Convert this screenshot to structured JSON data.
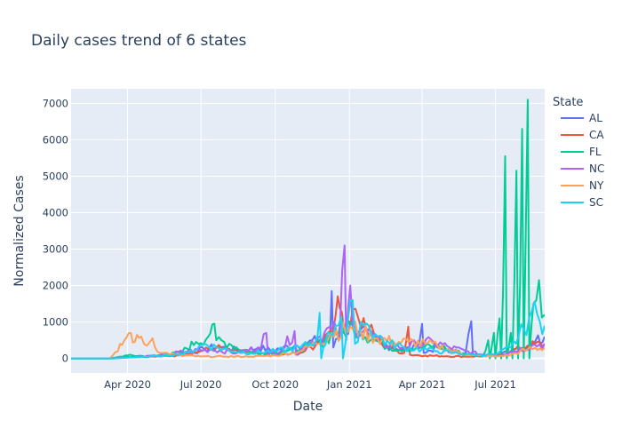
{
  "chart_data": {
    "type": "line",
    "title": "Daily cases trend of 6 states",
    "xlabel": "Date",
    "ylabel": "Normalized Cases",
    "x_range": [
      "2020-01-22",
      "2021-08-31"
    ],
    "ylim": [
      -400,
      7400
    ],
    "x_ticks": [
      {
        "date": "2020-04-01",
        "label": "Apr 2020"
      },
      {
        "date": "2020-07-01",
        "label": "Jul 2020"
      },
      {
        "date": "2020-10-01",
        "label": "Oct 2020"
      },
      {
        "date": "2021-01-01",
        "label": "Jan 2021"
      },
      {
        "date": "2021-04-01",
        "label": "Apr 2021"
      },
      {
        "date": "2021-07-01",
        "label": "Jul 2021"
      }
    ],
    "y_ticks": [
      {
        "value": 0,
        "label": "0"
      },
      {
        "value": 1000,
        "label": "1000"
      },
      {
        "value": 2000,
        "label": "2000"
      },
      {
        "value": 3000,
        "label": "3000"
      },
      {
        "value": 4000,
        "label": "4000"
      },
      {
        "value": 5000,
        "label": "5000"
      },
      {
        "value": 6000,
        "label": "6000"
      },
      {
        "value": 7000,
        "label": "7000"
      }
    ],
    "grid": true,
    "legend": {
      "title": "State",
      "placement": "right"
    },
    "series": [
      {
        "name": "AL",
        "color": "#636efa",
        "points": [
          [
            "2020-01-22",
            0
          ],
          [
            "2020-03-10",
            0
          ],
          [
            "2020-03-25",
            20
          ],
          [
            "2020-04-15",
            40
          ],
          [
            "2020-05-15",
            70
          ],
          [
            "2020-06-15",
            150
          ],
          [
            "2020-07-05",
            250
          ],
          [
            "2020-07-20",
            320
          ],
          [
            "2020-08-05",
            260
          ],
          [
            "2020-08-25",
            200
          ],
          [
            "2020-09-10",
            300
          ],
          [
            "2020-09-25",
            220
          ],
          [
            "2020-10-10",
            280
          ],
          [
            "2020-10-25",
            350
          ],
          [
            "2020-11-10",
            420
          ],
          [
            "2020-11-25",
            500
          ],
          [
            "2020-12-08",
            650
          ],
          [
            "2020-12-10",
            1850
          ],
          [
            "2020-12-12",
            300
          ],
          [
            "2020-12-22",
            700
          ],
          [
            "2021-01-05",
            900
          ],
          [
            "2021-01-15",
            800
          ],
          [
            "2021-01-25",
            600
          ],
          [
            "2021-02-10",
            400
          ],
          [
            "2021-02-25",
            300
          ],
          [
            "2021-03-10",
            250
          ],
          [
            "2021-03-25",
            300
          ],
          [
            "2021-04-01",
            950
          ],
          [
            "2021-04-03",
            150
          ],
          [
            "2021-04-20",
            300
          ],
          [
            "2021-05-10",
            200
          ],
          [
            "2021-05-25",
            150
          ],
          [
            "2021-06-01",
            1020
          ],
          [
            "2021-06-03",
            100
          ],
          [
            "2021-06-20",
            80
          ],
          [
            "2021-07-05",
            100
          ],
          [
            "2021-07-20",
            200
          ],
          [
            "2021-08-05",
            300
          ],
          [
            "2021-08-20",
            500
          ],
          [
            "2021-08-31",
            600
          ]
        ]
      },
      {
        "name": "CA",
        "color": "#ef553b",
        "points": [
          [
            "2020-01-22",
            0
          ],
          [
            "2020-03-15",
            0
          ],
          [
            "2020-04-01",
            40
          ],
          [
            "2020-05-01",
            50
          ],
          [
            "2020-06-01",
            80
          ],
          [
            "2020-07-01",
            200
          ],
          [
            "2020-07-20",
            300
          ],
          [
            "2020-08-10",
            200
          ],
          [
            "2020-09-10",
            120
          ],
          [
            "2020-10-10",
            100
          ],
          [
            "2020-11-01",
            150
          ],
          [
            "2020-11-20",
            350
          ],
          [
            "2020-12-05",
            700
          ],
          [
            "2020-12-15",
            1200
          ],
          [
            "2020-12-20",
            1380
          ],
          [
            "2020-12-28",
            1000
          ],
          [
            "2021-01-05",
            1350
          ],
          [
            "2021-01-12",
            1100
          ],
          [
            "2021-01-25",
            800
          ],
          [
            "2021-02-10",
            400
          ],
          [
            "2021-02-25",
            250
          ],
          [
            "2021-03-10",
            150
          ],
          [
            "2021-03-15",
            870
          ],
          [
            "2021-03-17",
            100
          ],
          [
            "2021-04-05",
            80
          ],
          [
            "2021-05-01",
            60
          ],
          [
            "2021-06-01",
            50
          ],
          [
            "2021-07-01",
            80
          ],
          [
            "2021-07-20",
            200
          ],
          [
            "2021-08-10",
            350
          ],
          [
            "2021-08-31",
            400
          ]
        ]
      },
      {
        "name": "FL",
        "color": "#00cc96",
        "points": [
          [
            "2020-01-22",
            0
          ],
          [
            "2020-03-10",
            0
          ],
          [
            "2020-04-01",
            80
          ],
          [
            "2020-05-01",
            60
          ],
          [
            "2020-06-05",
            150
          ],
          [
            "2020-06-25",
            450
          ],
          [
            "2020-07-10",
            600
          ],
          [
            "2020-07-15",
            930
          ],
          [
            "2020-07-20",
            500
          ],
          [
            "2020-08-05",
            400
          ],
          [
            "2020-08-25",
            200
          ],
          [
            "2020-09-15",
            150
          ],
          [
            "2020-10-10",
            200
          ],
          [
            "2020-11-01",
            250
          ],
          [
            "2020-11-25",
            450
          ],
          [
            "2020-12-15",
            700
          ],
          [
            "2021-01-05",
            900
          ],
          [
            "2021-01-15",
            750
          ],
          [
            "2021-02-01",
            500
          ],
          [
            "2021-02-20",
            300
          ],
          [
            "2021-03-10",
            250
          ],
          [
            "2021-04-01",
            300
          ],
          [
            "2021-04-20",
            350
          ],
          [
            "2021-05-10",
            200
          ],
          [
            "2021-06-01",
            100
          ],
          [
            "2021-06-15",
            50
          ],
          [
            "2021-06-22",
            500
          ],
          [
            "2021-06-24",
            0
          ],
          [
            "2021-06-29",
            700
          ],
          [
            "2021-07-01",
            0
          ],
          [
            "2021-07-06",
            1100
          ],
          [
            "2021-07-08",
            0
          ],
          [
            "2021-07-13",
            5550
          ],
          [
            "2021-07-15",
            0
          ],
          [
            "2021-07-20",
            700
          ],
          [
            "2021-07-22",
            0
          ],
          [
            "2021-07-27",
            5150
          ],
          [
            "2021-07-29",
            0
          ],
          [
            "2021-08-03",
            6300
          ],
          [
            "2021-08-05",
            0
          ],
          [
            "2021-08-10",
            7100
          ],
          [
            "2021-08-12",
            0
          ],
          [
            "2021-08-17",
            1500
          ],
          [
            "2021-08-24",
            2150
          ],
          [
            "2021-08-31",
            1200
          ]
        ]
      },
      {
        "name": "NC",
        "color": "#ab63fa",
        "points": [
          [
            "2020-01-22",
            0
          ],
          [
            "2020-03-15",
            0
          ],
          [
            "2020-04-10",
            40
          ],
          [
            "2020-05-10",
            80
          ],
          [
            "2020-06-15",
            200
          ],
          [
            "2020-07-15",
            250
          ],
          [
            "2020-08-15",
            150
          ],
          [
            "2020-09-10",
            300
          ],
          [
            "2020-09-20",
            700
          ],
          [
            "2020-09-22",
            100
          ],
          [
            "2020-10-10",
            250
          ],
          [
            "2020-10-25",
            750
          ],
          [
            "2020-10-27",
            100
          ],
          [
            "2020-11-10",
            400
          ],
          [
            "2020-11-25",
            600
          ],
          [
            "2020-12-10",
            800
          ],
          [
            "2020-12-20",
            700
          ],
          [
            "2020-12-26",
            3100
          ],
          [
            "2020-12-28",
            500
          ],
          [
            "2021-01-02",
            2000
          ],
          [
            "2021-01-05",
            900
          ],
          [
            "2021-01-20",
            800
          ],
          [
            "2021-02-05",
            500
          ],
          [
            "2021-02-20",
            350
          ],
          [
            "2021-03-10",
            300
          ],
          [
            "2021-03-25",
            400
          ],
          [
            "2021-04-15",
            450
          ],
          [
            "2021-05-05",
            300
          ],
          [
            "2021-05-25",
            200
          ],
          [
            "2021-06-15",
            100
          ],
          [
            "2021-07-05",
            100
          ],
          [
            "2021-07-25",
            200
          ],
          [
            "2021-08-15",
            350
          ],
          [
            "2021-08-31",
            400
          ]
        ]
      },
      {
        "name": "NY",
        "color": "#ffa15a",
        "points": [
          [
            "2020-01-22",
            0
          ],
          [
            "2020-03-10",
            0
          ],
          [
            "2020-03-20",
            200
          ],
          [
            "2020-03-28",
            500
          ],
          [
            "2020-04-05",
            700
          ],
          [
            "2020-04-10",
            450
          ],
          [
            "2020-04-18",
            600
          ],
          [
            "2020-04-25",
            350
          ],
          [
            "2020-05-02",
            550
          ],
          [
            "2020-05-05",
            300
          ],
          [
            "2020-05-15",
            150
          ],
          [
            "2020-06-01",
            100
          ],
          [
            "2020-07-01",
            50
          ],
          [
            "2020-08-01",
            50
          ],
          [
            "2020-09-01",
            50
          ],
          [
            "2020-10-01",
            80
          ],
          [
            "2020-11-01",
            200
          ],
          [
            "2020-11-20",
            400
          ],
          [
            "2020-12-10",
            700
          ],
          [
            "2021-01-05",
            800
          ],
          [
            "2021-01-15",
            750
          ],
          [
            "2021-02-05",
            550
          ],
          [
            "2021-02-25",
            450
          ],
          [
            "2021-03-15",
            450
          ],
          [
            "2021-04-05",
            400
          ],
          [
            "2021-04-20",
            350
          ],
          [
            "2021-05-10",
            200
          ],
          [
            "2021-06-01",
            80
          ],
          [
            "2021-07-01",
            50
          ],
          [
            "2021-07-20",
            100
          ],
          [
            "2021-08-10",
            250
          ],
          [
            "2021-08-31",
            300
          ]
        ]
      },
      {
        "name": "SC",
        "color": "#19d3f3",
        "points": [
          [
            "2020-01-22",
            0
          ],
          [
            "2020-03-15",
            0
          ],
          [
            "2020-04-10",
            30
          ],
          [
            "2020-05-10",
            60
          ],
          [
            "2020-06-15",
            150
          ],
          [
            "2020-07-05",
            400
          ],
          [
            "2020-07-20",
            300
          ],
          [
            "2020-08-10",
            200
          ],
          [
            "2020-09-01",
            150
          ],
          [
            "2020-10-01",
            200
          ],
          [
            "2020-11-01",
            300
          ],
          [
            "2020-11-20",
            450
          ],
          [
            "2020-11-25",
            1250
          ],
          [
            "2020-11-27",
            0
          ],
          [
            "2020-12-05",
            700
          ],
          [
            "2020-12-15",
            900
          ],
          [
            "2020-12-22",
            1150
          ],
          [
            "2020-12-24",
            0
          ],
          [
            "2021-01-05",
            1600
          ],
          [
            "2021-01-08",
            400
          ],
          [
            "2021-01-15",
            1000
          ],
          [
            "2021-01-25",
            900
          ],
          [
            "2021-02-05",
            600
          ],
          [
            "2021-02-20",
            400
          ],
          [
            "2021-03-10",
            300
          ],
          [
            "2021-04-01",
            250
          ],
          [
            "2021-04-20",
            200
          ],
          [
            "2021-05-10",
            150
          ],
          [
            "2021-06-01",
            100
          ],
          [
            "2021-07-01",
            100
          ],
          [
            "2021-07-20",
            300
          ],
          [
            "2021-08-05",
            800
          ],
          [
            "2021-08-15",
            1300
          ],
          [
            "2021-08-25",
            1000
          ],
          [
            "2021-08-31",
            900
          ]
        ]
      }
    ]
  }
}
